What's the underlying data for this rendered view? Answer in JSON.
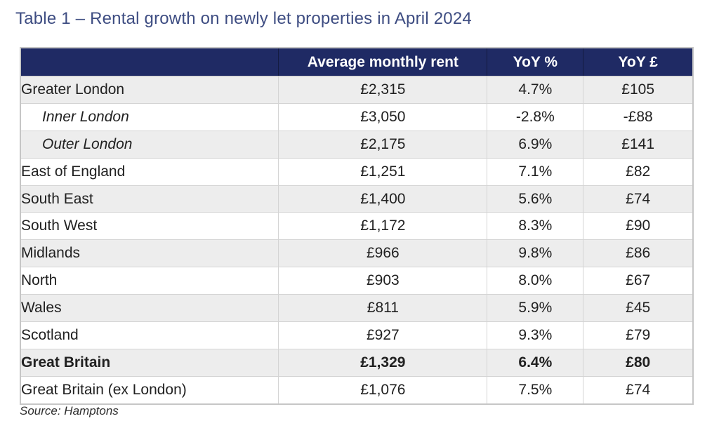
{
  "chart_data": {
    "type": "table",
    "title": "Table 1 – Rental growth on newly let properties in April 2024",
    "columns": [
      "",
      "Average monthly rent",
      "YoY %",
      "YoY £"
    ],
    "rows": [
      {
        "region": "Greater London",
        "rent": "£2,315",
        "yoy_pct": "4.7%",
        "yoy_gbp": "£105"
      },
      {
        "region": "Inner London",
        "rent": "£3,050",
        "yoy_pct": "-2.8%",
        "yoy_gbp": "-£88",
        "indent": true,
        "italic": true
      },
      {
        "region": "Outer London",
        "rent": "£2,175",
        "yoy_pct": "6.9%",
        "yoy_gbp": "£141",
        "indent": true,
        "italic": true
      },
      {
        "region": "East of England",
        "rent": "£1,251",
        "yoy_pct": "7.1%",
        "yoy_gbp": "£82"
      },
      {
        "region": "South East",
        "rent": "£1,400",
        "yoy_pct": "5.6%",
        "yoy_gbp": "£74"
      },
      {
        "region": "South West",
        "rent": "£1,172",
        "yoy_pct": "8.3%",
        "yoy_gbp": "£90"
      },
      {
        "region": "Midlands",
        "rent": "£966",
        "yoy_pct": "9.8%",
        "yoy_gbp": "£86"
      },
      {
        "region": "North",
        "rent": "£903",
        "yoy_pct": "8.0%",
        "yoy_gbp": "£67"
      },
      {
        "region": "Wales",
        "rent": "£811",
        "yoy_pct": "5.9%",
        "yoy_gbp": "£45"
      },
      {
        "region": "Scotland",
        "rent": "£927",
        "yoy_pct": "9.3%",
        "yoy_gbp": "£79"
      },
      {
        "region": "Great Britain",
        "rent": "£1,329",
        "yoy_pct": "6.4%",
        "yoy_gbp": "£80",
        "bold": true
      },
      {
        "region": "Great Britain (ex London)",
        "rent": "£1,076",
        "yoy_pct": "7.5%",
        "yoy_gbp": "£74"
      }
    ],
    "source": "Source: Hamptons",
    "colors": {
      "header_bg": "#1f2a64",
      "title_text": "#3e4d82",
      "stripe_bg": "#ededed",
      "border": "#d4d4d4",
      "body_text": "#212121"
    }
  }
}
